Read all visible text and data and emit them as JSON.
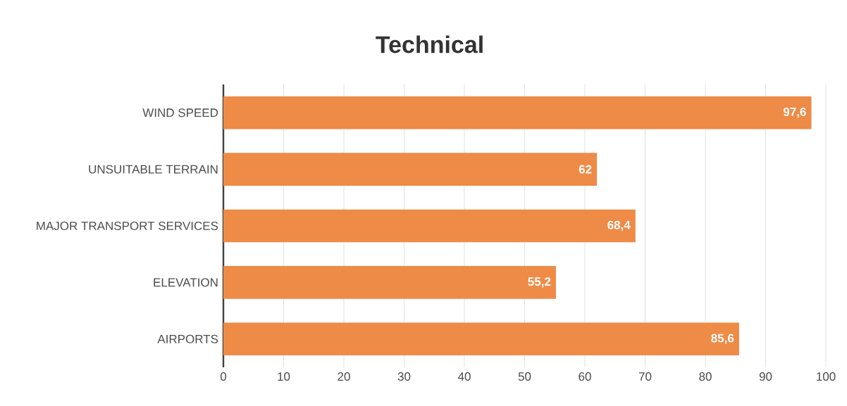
{
  "chart_data": {
    "type": "bar",
    "orientation": "horizontal",
    "title": "Technical",
    "categories": [
      "WIND SPEED",
      "UNSUITABLE TERRAIN",
      "MAJOR TRANSPORT SERVICES",
      "ELEVATION",
      "AIRPORTS"
    ],
    "values": [
      97.6,
      62,
      68.4,
      55.2,
      85.6
    ],
    "value_labels": [
      "97,6",
      "62",
      "68,4",
      "55,2",
      "85,6"
    ],
    "color": "#ed8b47",
    "xlim": [
      0,
      100
    ],
    "xticks": [
      0,
      10,
      20,
      30,
      40,
      50,
      60,
      70,
      80,
      90,
      100
    ],
    "grid": "x"
  }
}
